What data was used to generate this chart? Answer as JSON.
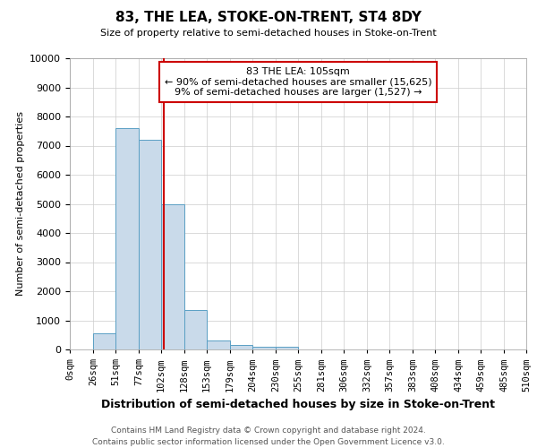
{
  "title": "83, THE LEA, STOKE-ON-TRENT, ST4 8DY",
  "subtitle": "Size of property relative to semi-detached houses in Stoke-on-Trent",
  "xlabel": "Distribution of semi-detached houses by size in Stoke-on-Trent",
  "ylabel": "Number of semi-detached properties",
  "footer1": "Contains HM Land Registry data © Crown copyright and database right 2024.",
  "footer2": "Contains public sector information licensed under the Open Government Licence v3.0.",
  "bin_edges": [
    0,
    26,
    51,
    77,
    102,
    128,
    153,
    179,
    204,
    230,
    255,
    281,
    306,
    332,
    357,
    383,
    408,
    434,
    459,
    485,
    510
  ],
  "bar_heights": [
    0,
    550,
    7600,
    7200,
    5000,
    1350,
    320,
    150,
    90,
    80,
    0,
    0,
    0,
    0,
    0,
    0,
    0,
    0,
    0,
    0
  ],
  "bar_color": "#c9daea",
  "bar_edge_color": "#5a9fc4",
  "property_size": 105,
  "red_line_color": "#cc0000",
  "annotation_title": "83 THE LEA: 105sqm",
  "annotation_line1": "← 90% of semi-detached houses are smaller (15,625)",
  "annotation_line2": "9% of semi-detached houses are larger (1,527) →",
  "annotation_box_color": "#cc0000",
  "ylim": [
    0,
    10000
  ],
  "yticks": [
    0,
    1000,
    2000,
    3000,
    4000,
    5000,
    6000,
    7000,
    8000,
    9000,
    10000
  ],
  "grid_color": "#cccccc",
  "background_color": "#ffffff"
}
